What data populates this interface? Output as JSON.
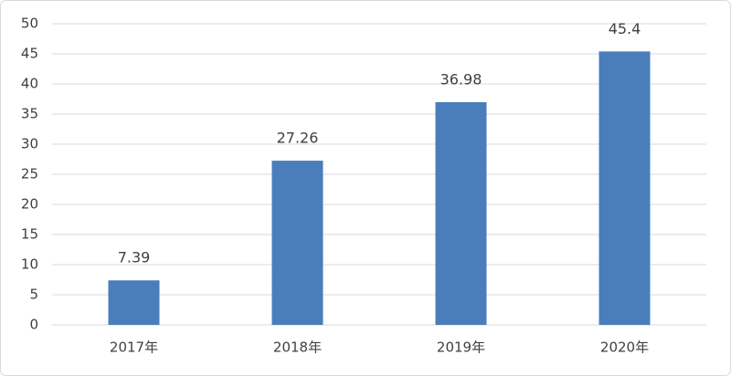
{
  "chart_data": {
    "type": "bar",
    "categories": [
      "2017年",
      "2018年",
      "2019年",
      "2020年"
    ],
    "values": [
      7.39,
      27.26,
      36.98,
      45.4
    ],
    "color": "#4a7ebb",
    "ylim": [
      0,
      50
    ],
    "yticks": [
      0,
      5,
      10,
      15,
      20,
      25,
      30,
      35,
      40,
      45,
      50
    ],
    "grid": true
  }
}
